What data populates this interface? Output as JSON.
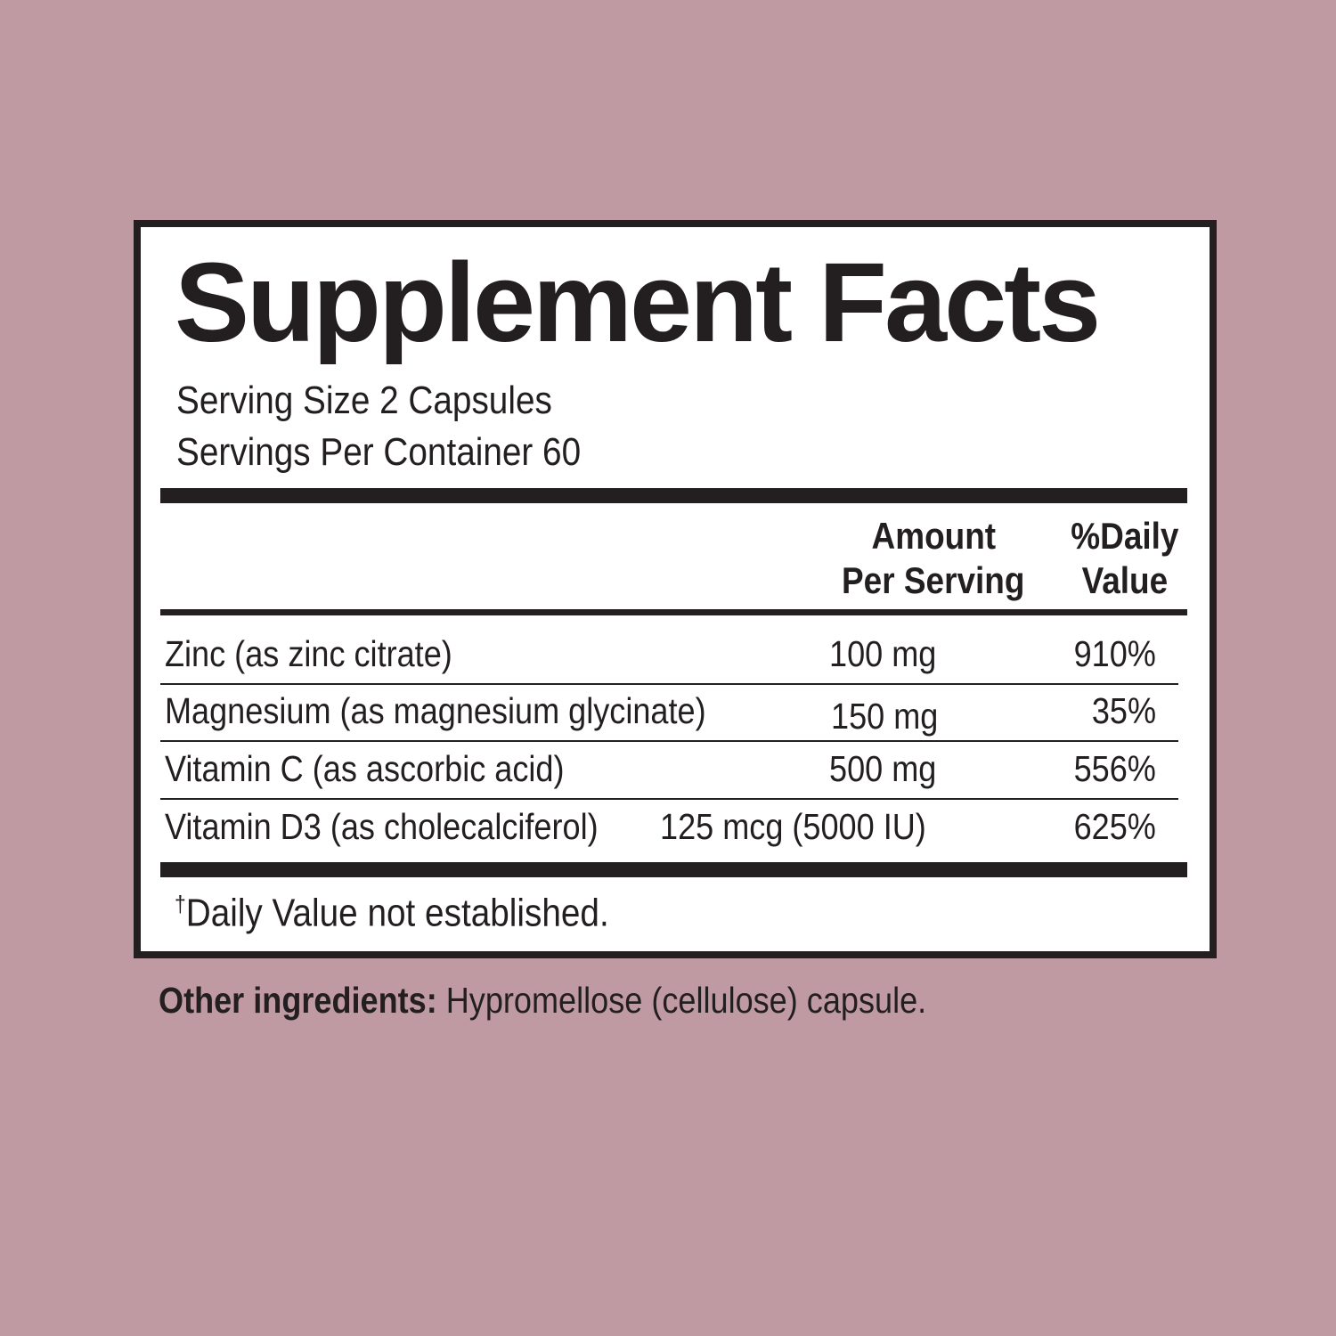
{
  "title": "Supplement Facts",
  "serving_size": "Serving Size 2 Capsules",
  "servings_per_container": "Servings Per Container 60",
  "headers": {
    "amount_line1": "Amount",
    "amount_line2": "Per Serving",
    "dv_line1": "%Daily",
    "dv_line2": "Value"
  },
  "rows": [
    {
      "name": "Zinc (as zinc citrate)",
      "amount": "100 mg",
      "dv": "910%"
    },
    {
      "name": "Magnesium (as magnesium glycinate)",
      "amount": "150 mg",
      "dv": "35%"
    },
    {
      "name": "Vitamin C (as ascorbic acid)",
      "amount": "500 mg",
      "dv": "556%"
    },
    {
      "name": "Vitamin D3 (as cholecalciferol)",
      "amount": "125 mcg (5000 IU)",
      "dv": "625%"
    }
  ],
  "footnote_symbol": "†",
  "footnote": "Daily Value not established.",
  "other_label": "Other ingredients:",
  "other_text": " Hypromellose (cellulose) capsule.",
  "colors": {
    "background": "#c09aa2",
    "ink": "#231f20",
    "panel": "#ffffff"
  }
}
